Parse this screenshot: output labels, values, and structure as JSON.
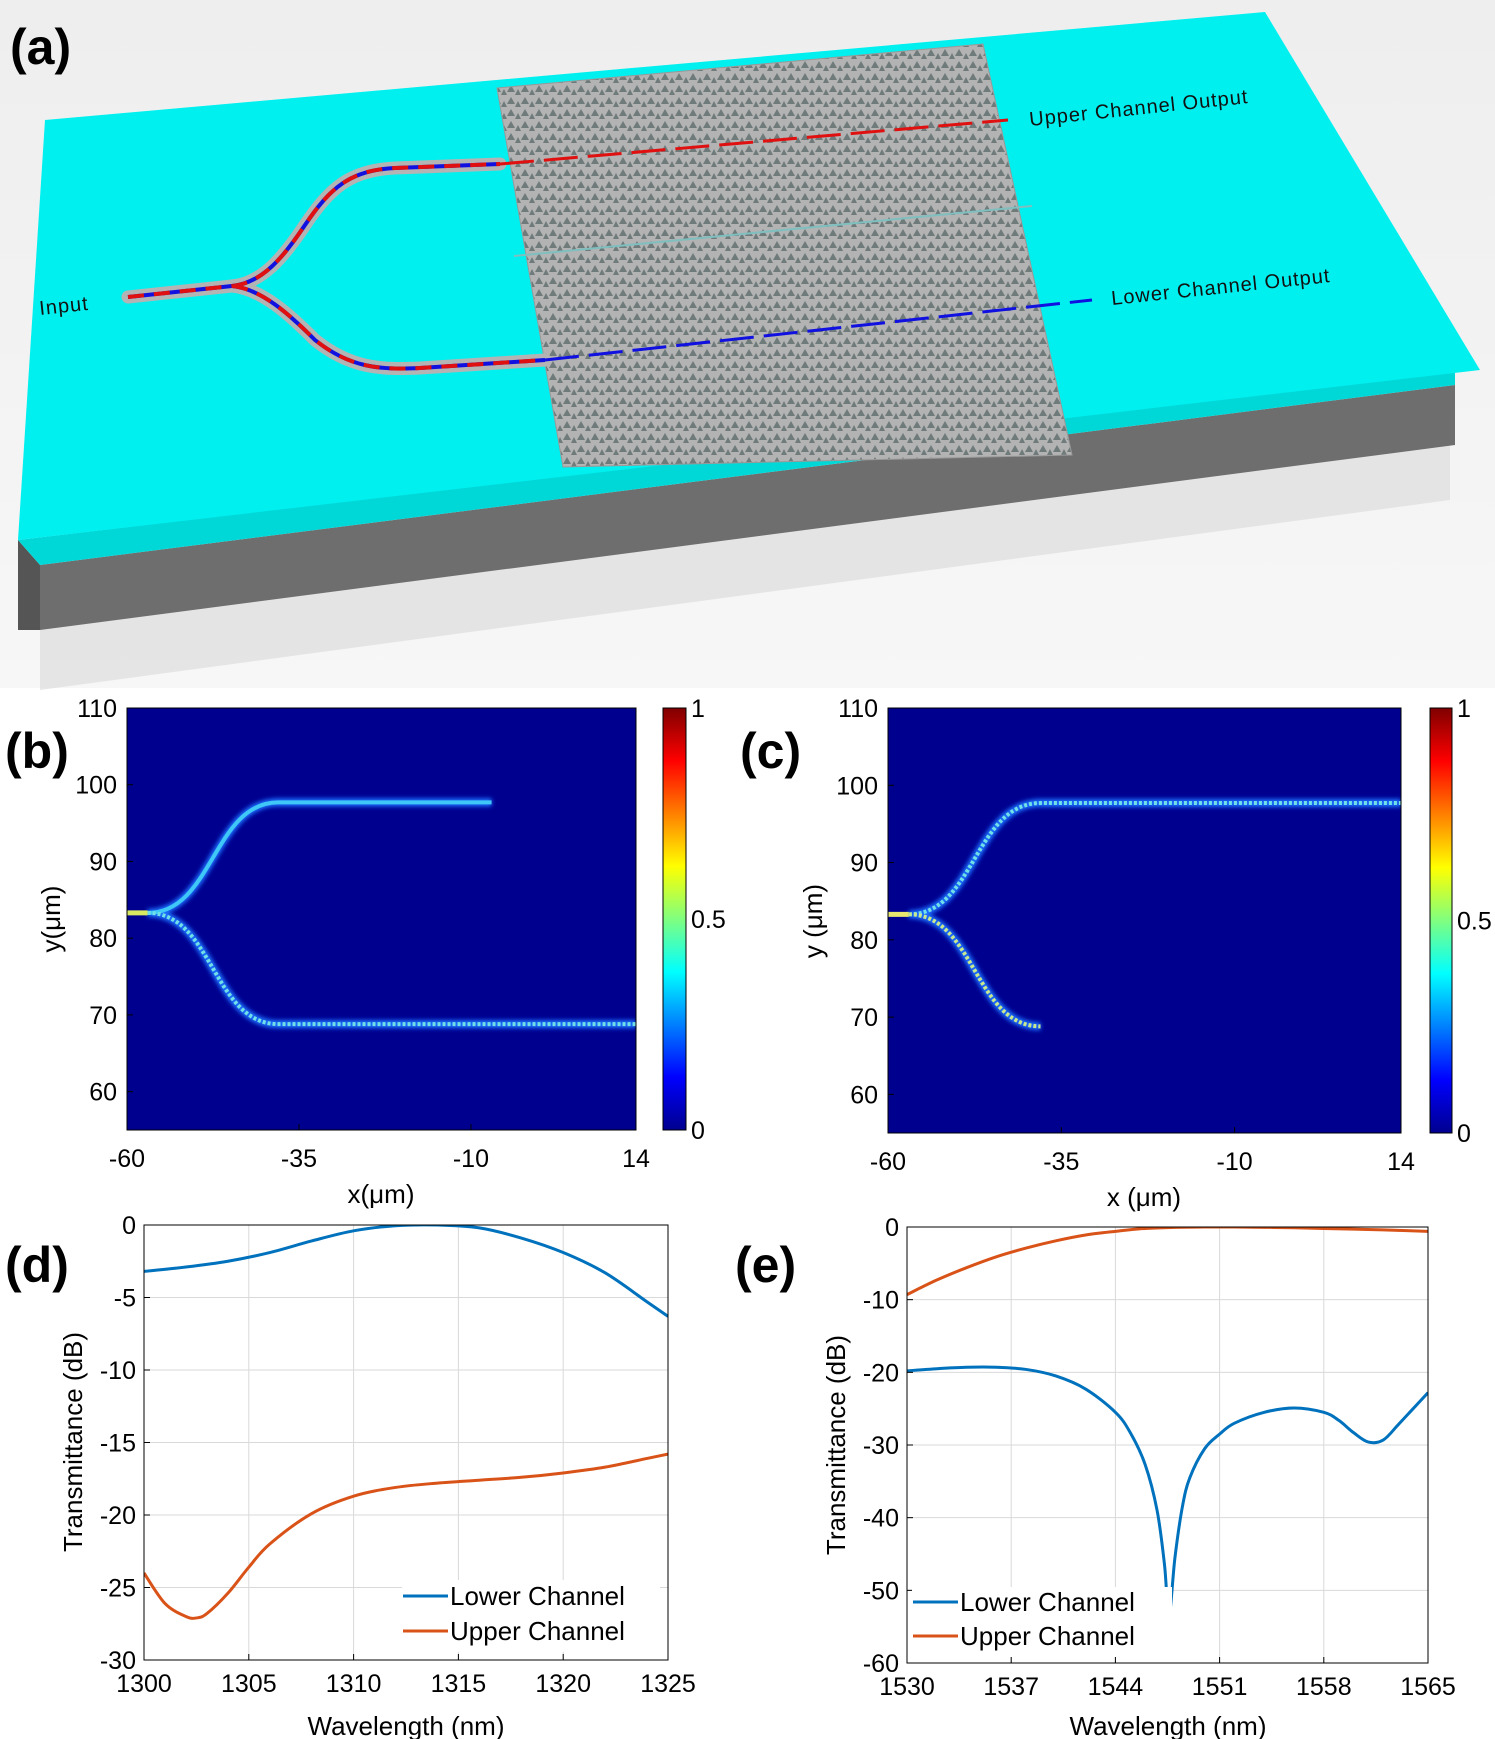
{
  "panel_labels": {
    "a": "(a)",
    "b": "(b)",
    "c": "(c)",
    "d": "(d)",
    "e": "(e)"
  },
  "schematic": {
    "input_label": "Input",
    "upper_label": "Upper Channel Output",
    "lower_label": "Lower Channel Output",
    "colors": {
      "substrate_top": "#00f0f0",
      "substrate_side": "#6e6e6e",
      "waveguide": "#b4b4b4",
      "upper_path": "#e01010",
      "lower_path": "#1010e0"
    }
  },
  "chart_data": [
    {
      "id": "b",
      "type": "heatmap",
      "title": "",
      "xlabel": "x(μm)",
      "ylabel": "y(μm)",
      "xlim": [
        -60,
        14
      ],
      "ylim": [
        55,
        110
      ],
      "xticks": [
        -60,
        -35,
        -10,
        14
      ],
      "yticks": [
        60,
        70,
        80,
        90,
        100,
        110
      ],
      "colorbar": {
        "range": [
          0,
          1
        ],
        "ticks": [
          0,
          0.5,
          1
        ],
        "tick_labels": [
          "0",
          "0.5",
          "1"
        ],
        "colormap": "jet"
      },
      "input_y": 83.3,
      "upper_branch_y": 97.7,
      "lower_branch_y": 68.8,
      "split_x": [
        -57,
        -38
      ],
      "upper_branch_end_x": -7,
      "lower_branch_end_x": 14
    },
    {
      "id": "c",
      "type": "heatmap",
      "title": "",
      "xlabel": "x (μm)",
      "ylabel": "y (μm)",
      "xlim": [
        -60,
        14
      ],
      "ylim": [
        55,
        110
      ],
      "xticks": [
        -60,
        -35,
        -10,
        14
      ],
      "yticks": [
        60,
        70,
        80,
        90,
        100,
        110
      ],
      "colorbar": {
        "range": [
          0,
          1
        ],
        "ticks": [
          0,
          0.5,
          1
        ],
        "tick_labels": [
          "0",
          "0.5",
          "1"
        ],
        "colormap": "jet"
      },
      "input_y": 83.3,
      "upper_branch_y": 97.7,
      "lower_branch_y": 68.8,
      "split_x": [
        -57,
        -38
      ],
      "upper_branch_end_x": 14,
      "lower_branch_end_x": -38
    },
    {
      "id": "d",
      "type": "line",
      "title": "",
      "xlabel": "Wavelength (nm)",
      "ylabel": "Transmittance (dB)",
      "xlim": [
        1300,
        1325
      ],
      "ylim": [
        -30,
        0
      ],
      "xticks": [
        1300,
        1305,
        1310,
        1315,
        1320,
        1325
      ],
      "yticks": [
        0,
        -5,
        -10,
        -15,
        -20,
        -25,
        -30
      ],
      "grid": true,
      "legend_position": "bottom-right",
      "series": [
        {
          "name": "Lower Channel",
          "color": "#0072bd",
          "x": [
            1300,
            1302,
            1304,
            1306,
            1308,
            1310,
            1312,
            1314,
            1316,
            1318,
            1320,
            1322,
            1324,
            1325
          ],
          "y": [
            -3.2,
            -2.9,
            -2.5,
            -1.9,
            -1.1,
            -0.4,
            -0.05,
            0,
            -0.2,
            -0.9,
            -1.9,
            -3.3,
            -5.3,
            -6.3
          ]
        },
        {
          "name": "Upper Channel",
          "color": "#d95319",
          "x": [
            1300,
            1301,
            1302,
            1302.5,
            1303,
            1304,
            1305,
            1306,
            1308,
            1310,
            1312,
            1314,
            1316,
            1318,
            1320,
            1322,
            1324,
            1325
          ],
          "y": [
            -24.0,
            -26.1,
            -27.0,
            -27.1,
            -26.8,
            -25.4,
            -23.6,
            -22.0,
            -19.9,
            -18.7,
            -18.1,
            -17.8,
            -17.6,
            -17.4,
            -17.1,
            -16.7,
            -16.1,
            -15.8
          ]
        }
      ]
    },
    {
      "id": "e",
      "type": "line",
      "title": "",
      "xlabel": "Wavelength (nm)",
      "ylabel": "Transmittance (dB)",
      "xlim": [
        1530,
        1565
      ],
      "ylim": [
        -60,
        0
      ],
      "xticks": [
        1530,
        1537,
        1544,
        1551,
        1558,
        1565
      ],
      "yticks": [
        0,
        -10,
        -20,
        -30,
        -40,
        -50,
        -60
      ],
      "grid": true,
      "legend_position": "bottom-left",
      "series": [
        {
          "name": "Lower Channel",
          "color": "#0072bd",
          "x": [
            1530,
            1532,
            1534,
            1536,
            1538,
            1540,
            1542,
            1544,
            1545,
            1546,
            1546.8,
            1547.3,
            1547.6,
            1548,
            1548.5,
            1549,
            1550,
            1551,
            1552,
            1554,
            1556,
            1558,
            1559,
            1560,
            1561,
            1562,
            1563,
            1564,
            1565
          ],
          "y": [
            -19.8,
            -19.5,
            -19.3,
            -19.3,
            -19.6,
            -20.5,
            -22.3,
            -25.5,
            -28.3,
            -32.7,
            -39.0,
            -46.5,
            -53.5,
            -45.5,
            -38.5,
            -34.5,
            -30.5,
            -28.5,
            -27.0,
            -25.5,
            -24.9,
            -25.5,
            -26.6,
            -28.3,
            -29.6,
            -29.3,
            -27.2,
            -25.0,
            -22.8
          ]
        },
        {
          "name": "Upper Channel",
          "color": "#d95319",
          "x": [
            1530,
            1532,
            1534,
            1536,
            1538,
            1540,
            1542,
            1544,
            1546,
            1548,
            1550,
            1552,
            1554,
            1556,
            1558,
            1560,
            1562,
            1565
          ],
          "y": [
            -9.3,
            -7.3,
            -5.6,
            -4.1,
            -2.9,
            -1.9,
            -1.1,
            -0.6,
            -0.2,
            -0.05,
            0,
            0,
            -0.05,
            -0.1,
            -0.2,
            -0.3,
            -0.4,
            -0.6
          ]
        }
      ]
    }
  ]
}
